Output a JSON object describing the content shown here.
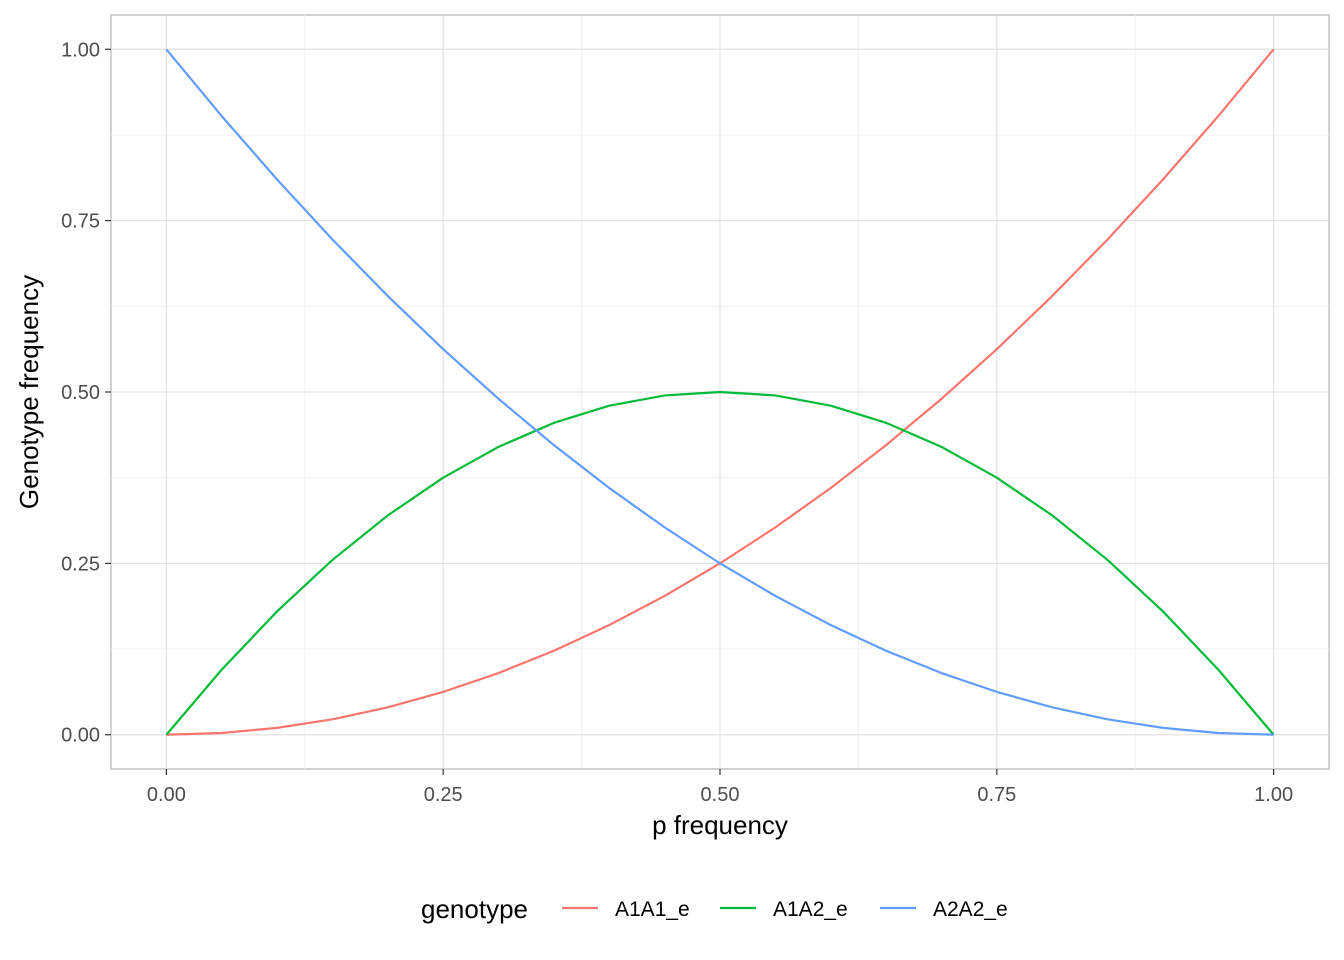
{
  "chart_data": {
    "type": "line",
    "title": "",
    "xlabel": "p frequency",
    "ylabel": "Genotype frequency",
    "xlim": [
      -0.05,
      1.05
    ],
    "ylim": [
      -0.05,
      1.05
    ],
    "x_ticks": [
      0,
      0.25,
      0.5,
      0.75,
      1
    ],
    "x_tick_labels": [
      "0.00",
      "0.25",
      "0.50",
      "0.75",
      "1.00"
    ],
    "y_ticks": [
      0,
      0.25,
      0.5,
      0.75,
      1
    ],
    "y_tick_labels": [
      "0.00",
      "0.25",
      "0.50",
      "0.75",
      "1.00"
    ],
    "grid": true,
    "legend": {
      "title": "genotype",
      "position": "bottom"
    },
    "x": [
      0,
      0.05,
      0.1,
      0.15,
      0.2,
      0.25,
      0.3,
      0.35,
      0.4,
      0.45,
      0.5,
      0.55,
      0.6,
      0.65,
      0.7,
      0.75,
      0.8,
      0.85,
      0.9,
      0.95,
      1
    ],
    "series": [
      {
        "name": "A1A1_e",
        "color": "#F8766D",
        "values": [
          0,
          0.0025,
          0.01,
          0.0225,
          0.04,
          0.0625,
          0.09,
          0.1225,
          0.16,
          0.2025,
          0.25,
          0.3025,
          0.36,
          0.4225,
          0.49,
          0.5625,
          0.64,
          0.7225,
          0.81,
          0.9025,
          1
        ]
      },
      {
        "name": "A1A2_e",
        "color": "#00BA38",
        "values": [
          0,
          0.095,
          0.18,
          0.255,
          0.32,
          0.375,
          0.42,
          0.455,
          0.48,
          0.495,
          0.5,
          0.495,
          0.48,
          0.455,
          0.42,
          0.375,
          0.32,
          0.255,
          0.18,
          0.095,
          0
        ]
      },
      {
        "name": "A2A2_e",
        "color": "#619CFF",
        "values": [
          1,
          0.9025,
          0.81,
          0.7225,
          0.64,
          0.5625,
          0.49,
          0.4225,
          0.36,
          0.3025,
          0.25,
          0.2025,
          0.16,
          0.1225,
          0.09,
          0.0625,
          0.04,
          0.0225,
          0.01,
          0.0025,
          0
        ]
      }
    ]
  }
}
